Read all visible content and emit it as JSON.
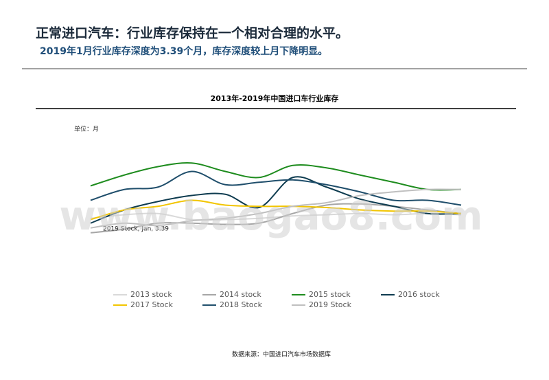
{
  "header": {
    "title": "正常进口汽车：行业库存保持在一个相对合理的水平。",
    "subtitle": "2019年1月行业库存深度为3.39个月，库存深度较上月下降明显。"
  },
  "chart_data": {
    "type": "line",
    "title": "2013年-2019年中国进口车行业库存",
    "unit_label": "单位：月",
    "categories": [
      null,
      null,
      null,
      null,
      null,
      null,
      null,
      null,
      null,
      null,
      null,
      null
    ],
    "ylim": [
      3,
      4.2
    ],
    "series": [
      {
        "name": "2013 stock",
        "color": "#d9d9d9",
        "values": [
          3.47,
          3.5,
          3.51,
          3.46,
          3.46,
          3.47,
          3.49,
          3.5,
          3.51,
          3.5,
          3.51,
          3.5
        ]
      },
      {
        "name": "2014 stock",
        "color": "#a6a6a6",
        "values": [
          3.35,
          3.38,
          3.43,
          3.43,
          3.42,
          3.43,
          3.51,
          3.58,
          3.59,
          3.57,
          3.54,
          3.51
        ]
      },
      {
        "name": "2015 stock",
        "color": "#1e8c1e",
        "values": [
          3.74,
          3.83,
          3.9,
          3.93,
          3.86,
          3.81,
          3.91,
          3.89,
          3.83,
          3.77,
          3.71,
          3.71
        ]
      },
      {
        "name": "2016 stock",
        "color": "#0d3b4f",
        "values": [
          3.43,
          3.54,
          3.61,
          3.66,
          3.67,
          3.56,
          3.81,
          3.73,
          3.63,
          3.57,
          3.51,
          3.51
        ]
      },
      {
        "name": "2017 Stock",
        "color": "#f2c500",
        "values": [
          3.46,
          3.54,
          3.57,
          3.62,
          3.58,
          3.57,
          3.57,
          3.56,
          3.54,
          3.53,
          3.53,
          3.51
        ]
      },
      {
        "name": "2018 Stock",
        "color": "#1f4e6b",
        "values": [
          3.62,
          3.71,
          3.73,
          3.86,
          3.75,
          3.77,
          3.79,
          3.75,
          3.69,
          3.62,
          3.62,
          3.58
        ]
      },
      {
        "name": "2019 Stock",
        "color": "#bfbfbf",
        "values": [
          3.39,
          3.43,
          3.41,
          3.45,
          3.47,
          3.51,
          3.57,
          3.6,
          3.66,
          3.69,
          3.71,
          3.71
        ]
      }
    ],
    "annotation": "2019 Stock, Jan, 3.39",
    "watermark": "www.baogao8.com",
    "source": "数据来源：中国进口汽车市场数据库"
  }
}
